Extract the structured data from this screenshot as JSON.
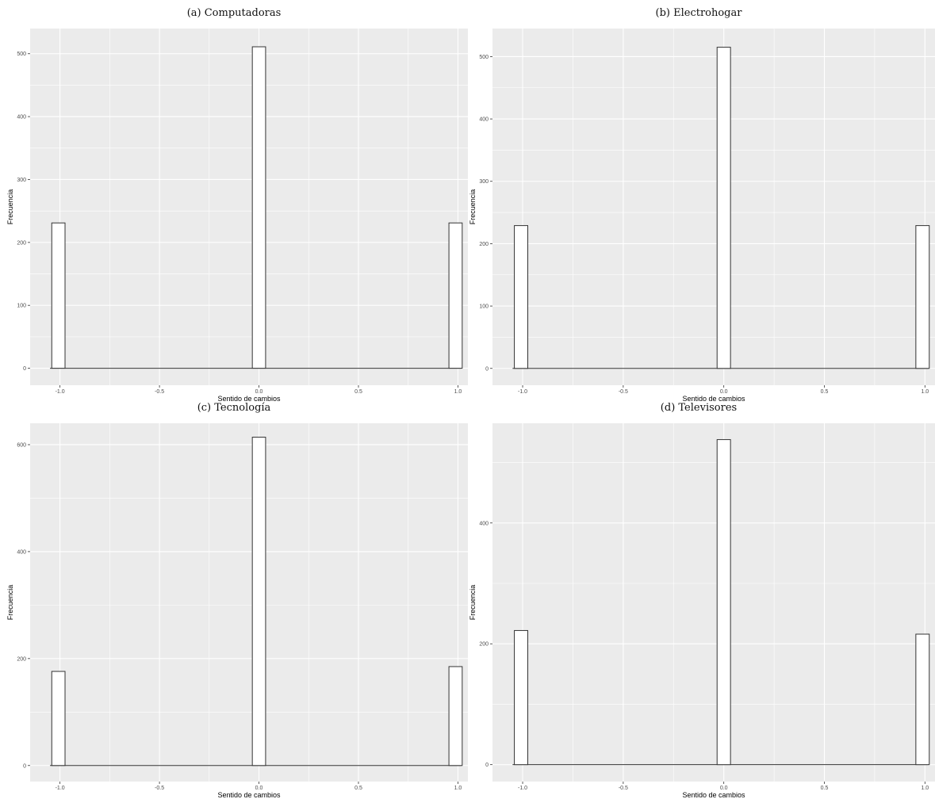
{
  "chart_data": [
    {
      "type": "bar",
      "title": "(a) Computadoras",
      "xlabel": "Sentido de cambios",
      "ylabel": "Frecuencia",
      "x": [
        -1,
        0,
        1
      ],
      "values": [
        231,
        511,
        231
      ],
      "xlim": [
        -1.15,
        1.05
      ],
      "ylim": [
        -27,
        540
      ],
      "xticks": [
        -1.0,
        -0.5,
        0.0,
        0.5,
        1.0
      ],
      "xtick_labels": [
        "-1.0",
        "-0.5",
        "0.0",
        "0.5",
        "1.0"
      ],
      "yticks": [
        0,
        100,
        200,
        300,
        400,
        500
      ],
      "ytick_labels": [
        "0",
        "100",
        "200",
        "300",
        "400",
        "500"
      ],
      "grid": true,
      "bar_fill": "#ffffff",
      "bar_stroke": "#333333",
      "panel_bg": "#ebebeb",
      "grid_color": "#ffffff"
    },
    {
      "type": "bar",
      "title": "(b) Electrohogar",
      "xlabel": "Sentido de cambios",
      "ylabel": "Frecuencia",
      "x": [
        -1,
        0,
        1
      ],
      "values": [
        229,
        515,
        229
      ],
      "xlim": [
        -1.15,
        1.05
      ],
      "ylim": [
        -27,
        545
      ],
      "xticks": [
        -1.0,
        -0.5,
        0.0,
        0.5,
        1.0
      ],
      "xtick_labels": [
        "-1.0",
        "-0.5",
        "0.0",
        "0.5",
        "1.0"
      ],
      "yticks": [
        0,
        100,
        200,
        300,
        400,
        500
      ],
      "ytick_labels": [
        "0",
        "100",
        "200",
        "300",
        "400",
        "500"
      ],
      "grid": true,
      "bar_fill": "#ffffff",
      "bar_stroke": "#333333",
      "panel_bg": "#ebebeb",
      "grid_color": "#ffffff"
    },
    {
      "type": "bar",
      "title": "(c) Tecnología",
      "xlabel": "Sentido de cambios",
      "ylabel": "Frecuencia",
      "x": [
        -1,
        0,
        1
      ],
      "values": [
        176,
        614,
        185
      ],
      "xlim": [
        -1.15,
        1.05
      ],
      "ylim": [
        -30,
        640
      ],
      "xticks": [
        -1.0,
        -0.5,
        0.0,
        0.5,
        1.0
      ],
      "xtick_labels": [
        "-1.0",
        "-0.5",
        "0.0",
        "0.5",
        "1.0"
      ],
      "yticks": [
        0,
        200,
        400,
        600
      ],
      "ytick_labels": [
        "0",
        "200",
        "400",
        "600"
      ],
      "grid": true,
      "bar_fill": "#ffffff",
      "bar_stroke": "#333333",
      "panel_bg": "#ebebeb",
      "grid_color": "#ffffff"
    },
    {
      "type": "bar",
      "title": "(d) Televisores",
      "xlabel": "Sentido de cambios",
      "ylabel": "Frecuencia",
      "x": [
        -1,
        0,
        1
      ],
      "values": [
        222,
        538,
        216
      ],
      "xlim": [
        -1.15,
        1.05
      ],
      "ylim": [
        -28,
        565
      ],
      "xticks": [
        -1.0,
        -0.5,
        0.0,
        0.5,
        1.0
      ],
      "xtick_labels": [
        "-1.0",
        "-0.5",
        "0.0",
        "0.5",
        "1.0"
      ],
      "yticks": [
        0,
        200,
        400
      ],
      "ytick_labels": [
        "0",
        "200",
        "400"
      ],
      "grid": true,
      "bar_fill": "#ffffff",
      "bar_stroke": "#333333",
      "panel_bg": "#ebebeb",
      "grid_color": "#ffffff"
    }
  ]
}
